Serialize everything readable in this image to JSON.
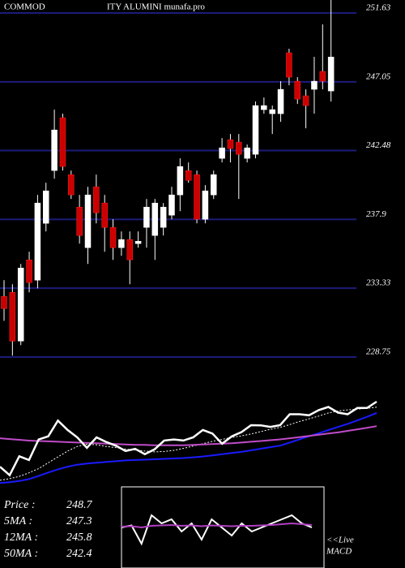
{
  "chart_data": {
    "type": "candlestick",
    "title_left": "COMMOD",
    "title_right": "ITY ALUMINI munafa.pro",
    "open": [
      232.78,
      233.05,
      229.81,
      235.21,
      233.86,
      237.64,
      241.15,
      244.66,
      240.88,
      238.72,
      236.02,
      240.07,
      238.99,
      237.37,
      236.02,
      236.56,
      236.29,
      237.37,
      236.83,
      237.37,
      238.18,
      239.53,
      241.15,
      240.88,
      237.91,
      239.53,
      241.96,
      243.2,
      243.04,
      241.96,
      242.23,
      245.2,
      244.93,
      244.93,
      248.98,
      247.09,
      246.12,
      246.55,
      247.74,
      246.44
    ],
    "high": [
      233.86,
      233.59,
      234.94,
      235.75,
      239.53,
      240.34,
      245.2,
      244.93,
      241.15,
      239.53,
      240.07,
      240.88,
      239.53,
      237.91,
      237.1,
      237.1,
      237.1,
      239.26,
      239.26,
      238.99,
      240.07,
      241.96,
      241.69,
      241.15,
      240.18,
      241.15,
      243.31,
      243.58,
      243.58,
      242.88,
      245.74,
      246.01,
      245.47,
      247.09,
      249.25,
      247.36,
      246.55,
      248.71,
      250.87,
      252.49
    ],
    "low": [
      231.16,
      228.84,
      229.54,
      233.05,
      233.32,
      237.1,
      240.61,
      241.15,
      239.26,
      236.29,
      234.94,
      237.64,
      235.75,
      235.21,
      235.48,
      233.59,
      236.02,
      236.02,
      235.21,
      236.83,
      237.91,
      238.45,
      240.34,
      237.64,
      237.64,
      239.26,
      241.69,
      241.69,
      239.26,
      241.69,
      241.96,
      244.93,
      243.58,
      244.39,
      246.82,
      245.58,
      243.96,
      244.93,
      246.55,
      245.74
    ],
    "close": [
      231.97,
      229.81,
      234.67,
      233.7,
      238.99,
      239.8,
      243.85,
      241.42,
      239.53,
      236.83,
      239.53,
      238.34,
      237.37,
      236.02,
      236.56,
      235.21,
      236.45,
      238.72,
      238.99,
      238.72,
      239.53,
      241.42,
      240.5,
      237.91,
      239.8,
      240.88,
      242.66,
      242.61,
      242.23,
      242.66,
      245.47,
      245.47,
      245.2,
      246.55,
      247.36,
      245.9,
      245.47,
      247.09,
      247.09,
      248.7
    ],
    "up_color": "#ffffff",
    "down_color": "#cc0000",
    "ylim": [
      228.48,
      252.49
    ],
    "yticks": [
      251.63,
      247.05,
      242.48,
      237.9,
      233.33,
      228.75
    ],
    "grid": true,
    "grid_color": "#1c1c7a",
    "indicator": {
      "ylim": [
        226.8,
        258.1
      ],
      "price_color": "#ffffff",
      "series": [
        {
          "color": "#ffffff",
          "dashed": true,
          "values": [
            228.5,
            228.9,
            229.5,
            230.4,
            231.5,
            233.0,
            234.5,
            236.0,
            237.2,
            237.8,
            237.6,
            237.2,
            236.9,
            236.5,
            236.3,
            236.0,
            235.8,
            235.9,
            236.2,
            236.7,
            237.3,
            237.9,
            238.5,
            239.0,
            239.5,
            239.9,
            240.4,
            241.0,
            241.6,
            242.1,
            242.8,
            243.6,
            244.3,
            245.0,
            245.8,
            246.3,
            246.6,
            246.8,
            247.0,
            247.3
          ]
        },
        {
          "color": "#1a1aff",
          "dashed": false,
          "values": [
            227.8,
            228.0,
            228.3,
            228.8,
            229.6,
            230.5,
            231.3,
            232.0,
            232.5,
            232.8,
            233.0,
            233.2,
            233.4,
            233.6,
            233.7,
            233.8,
            233.9,
            234.0,
            234.1,
            234.2,
            234.4,
            234.6,
            234.9,
            235.2,
            235.5,
            235.8,
            236.2,
            236.6,
            237.0,
            237.4,
            238.2,
            239.0,
            239.8,
            240.6,
            241.4,
            242.2,
            243.0,
            243.9,
            244.8,
            245.8
          ]
        },
        {
          "color": "#c04cc8",
          "dashed": false,
          "values": [
            239.3,
            239.1,
            238.9,
            238.7,
            238.6,
            238.5,
            238.4,
            238.3,
            238.2,
            238.1,
            238.0,
            237.9,
            237.8,
            237.7,
            237.6,
            237.6,
            237.5,
            237.5,
            237.5,
            237.5,
            237.6,
            237.7,
            237.8,
            237.9,
            238.0,
            238.2,
            238.4,
            238.6,
            238.8,
            239.0,
            239.3,
            239.6,
            239.9,
            240.2,
            240.5,
            240.8,
            241.2,
            241.6,
            242.0,
            242.4
          ]
        }
      ],
      "legend": [
        {
          "label": "Price   :",
          "value": 248.7
        },
        {
          "label": "5MA :",
          "value": 247.3
        },
        {
          "label": "12MA :",
          "value": 245.8
        },
        {
          "label": "50MA :",
          "value": 242.4
        }
      ]
    },
    "macd": {
      "label_top": "<<Live",
      "label_bottom": "MACD",
      "ylim": [
        -1,
        1
      ],
      "series": [
        {
          "color": "#ffffff",
          "values": [
            0.0,
            0.05,
            -0.4,
            0.3,
            0.1,
            0.2,
            -0.1,
            0.1,
            -0.3,
            0.2,
            0.0,
            -0.2,
            0.1,
            -0.1,
            0.0,
            0.1,
            0.2,
            0.3,
            0.1,
            0.0
          ]
        },
        {
          "color": "#b040c0",
          "values": [
            0.02,
            0.03,
            0.0,
            0.04,
            0.05,
            0.06,
            0.04,
            0.05,
            0.03,
            0.05,
            0.04,
            0.03,
            0.04,
            0.04,
            0.05,
            0.06,
            0.08,
            0.1,
            0.08,
            0.06
          ]
        }
      ]
    }
  }
}
